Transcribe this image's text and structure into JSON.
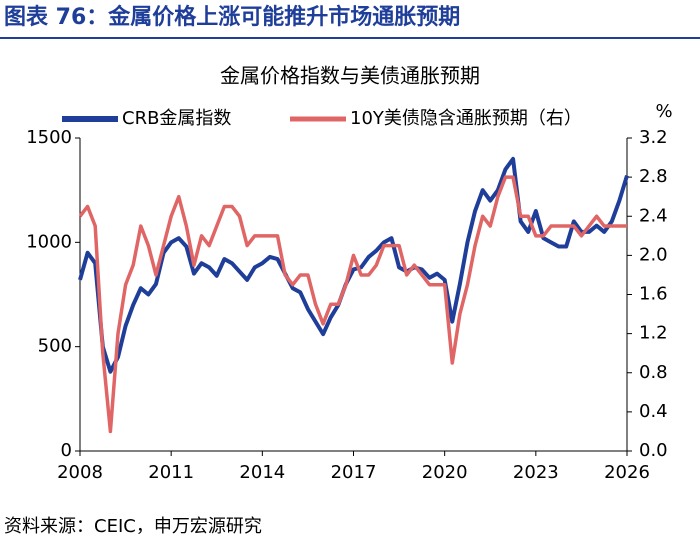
{
  "chart_data": {
    "type": "line",
    "figure_title": "图表 76：金属价格上涨可能推升市场通胀预期",
    "title": "金属价格指数与美债通胀预期",
    "source": "资料来源：CEIC，申万宏源研究",
    "y2_unit": "%",
    "x": [
      2008,
      2008.25,
      2008.5,
      2008.75,
      2009,
      2009.25,
      2009.5,
      2009.75,
      2010,
      2010.25,
      2010.5,
      2010.75,
      2011,
      2011.25,
      2011.5,
      2011.75,
      2012,
      2012.25,
      2012.5,
      2012.75,
      2013,
      2013.25,
      2013.5,
      2013.75,
      2014,
      2014.25,
      2014.5,
      2014.75,
      2015,
      2015.25,
      2015.5,
      2015.75,
      2016,
      2016.25,
      2016.5,
      2016.75,
      2017,
      2017.25,
      2017.5,
      2017.75,
      2018,
      2018.25,
      2018.5,
      2018.75,
      2019,
      2019.25,
      2019.5,
      2019.75,
      2020,
      2020.25,
      2020.5,
      2020.75,
      2021,
      2021.25,
      2021.5,
      2021.75,
      2022,
      2022.25,
      2022.5,
      2022.75,
      2023,
      2023.25,
      2023.5,
      2023.75,
      2024,
      2024.25,
      2024.5,
      2024.75,
      2025,
      2025.25,
      2025.5,
      2025.75,
      2026
    ],
    "series": [
      {
        "name": "CRB金属指数",
        "color": "#1f3e99",
        "axis": "y",
        "values": [
          820,
          950,
          900,
          500,
          380,
          450,
          600,
          700,
          780,
          750,
          800,
          950,
          1000,
          1020,
          980,
          850,
          900,
          880,
          840,
          920,
          900,
          860,
          820,
          880,
          900,
          930,
          920,
          850,
          780,
          760,
          680,
          620,
          560,
          640,
          700,
          800,
          870,
          880,
          930,
          960,
          1000,
          1020,
          880,
          860,
          880,
          870,
          830,
          850,
          820,
          620,
          800,
          1000,
          1150,
          1250,
          1200,
          1250,
          1350,
          1400,
          1100,
          1050,
          1150,
          1020,
          1000,
          980,
          980,
          1100,
          1050,
          1050,
          1080,
          1050,
          1100,
          1200,
          1320
        ]
      },
      {
        "name": "10Y美债隐含通胀预期（右）",
        "color": "#e06666",
        "axis": "y2",
        "values": [
          2.4,
          2.5,
          2.3,
          1.0,
          0.2,
          1.2,
          1.7,
          1.9,
          2.3,
          2.1,
          1.8,
          2.1,
          2.4,
          2.6,
          2.3,
          1.9,
          2.2,
          2.1,
          2.3,
          2.5,
          2.5,
          2.4,
          2.1,
          2.2,
          2.2,
          2.2,
          2.2,
          1.8,
          1.7,
          1.8,
          1.8,
          1.5,
          1.3,
          1.5,
          1.5,
          1.7,
          2.0,
          1.8,
          1.8,
          1.9,
          2.1,
          2.1,
          2.1,
          1.8,
          1.9,
          1.8,
          1.7,
          1.7,
          1.7,
          0.9,
          1.4,
          1.7,
          2.1,
          2.4,
          2.3,
          2.6,
          2.8,
          2.8,
          2.4,
          2.4,
          2.2,
          2.2,
          2.3,
          2.3,
          2.3,
          2.3,
          2.2,
          2.3,
          2.4,
          2.3,
          2.3,
          2.3,
          2.3
        ]
      }
    ],
    "xlim": [
      2008,
      2026
    ],
    "xticks": [
      2008,
      2011,
      2014,
      2017,
      2020,
      2023,
      2026
    ],
    "ylim": [
      0,
      1500
    ],
    "yticks": [
      0,
      500,
      1000,
      1500
    ],
    "y2lim": [
      0,
      3.2
    ],
    "y2ticks": [
      {
        "value": 0,
        "label": "0.0"
      },
      {
        "value": 0.4,
        "label": "0.4"
      },
      {
        "value": 0.8,
        "label": "0.8"
      },
      {
        "value": 1.2,
        "label": "1.2"
      },
      {
        "value": 1.6,
        "label": "1.6"
      },
      {
        "value": 2,
        "label": "2.0"
      },
      {
        "value": 2.4,
        "label": "2.4"
      },
      {
        "value": 2.8,
        "label": "2.8"
      },
      {
        "value": 3.2,
        "label": "3.2"
      }
    ],
    "grid": false,
    "legend": "top"
  }
}
